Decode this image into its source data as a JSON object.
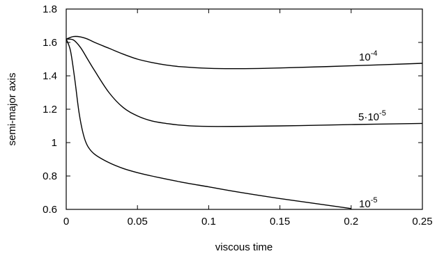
{
  "chart_data": {
    "type": "line",
    "xlabel": "viscous time",
    "ylabel": "semi-major axis",
    "xlim": [
      0,
      0.25
    ],
    "ylim": [
      0.6,
      1.8
    ],
    "xticks": [
      "0",
      "0.05",
      "0.1",
      "0.15",
      "0.2",
      "0.25"
    ],
    "yticks": [
      "0.6",
      "0.8",
      "1",
      "1.2",
      "1.4",
      "1.6",
      "1.8"
    ],
    "grid": false,
    "series": [
      {
        "label_base": "10",
        "label_exp": "-4",
        "x": [
          0,
          0.005,
          0.01,
          0.015,
          0.02,
          0.03,
          0.04,
          0.05,
          0.06,
          0.07,
          0.08,
          0.1,
          0.12,
          0.15,
          0.2,
          0.25
        ],
        "y": [
          1.62,
          1.635,
          1.633,
          1.62,
          1.6,
          1.565,
          1.53,
          1.5,
          1.48,
          1.465,
          1.455,
          1.445,
          1.443,
          1.447,
          1.46,
          1.475
        ]
      },
      {
        "label_base": "5·10",
        "label_exp": "-5",
        "x": [
          0,
          0.005,
          0.01,
          0.015,
          0.02,
          0.03,
          0.04,
          0.05,
          0.06,
          0.07,
          0.08,
          0.1,
          0.15,
          0.2,
          0.25
        ],
        "y": [
          1.62,
          1.615,
          1.57,
          1.5,
          1.43,
          1.3,
          1.21,
          1.16,
          1.13,
          1.115,
          1.105,
          1.097,
          1.1,
          1.108,
          1.115
        ]
      },
      {
        "label_base": "10",
        "label_exp": "-5",
        "x": [
          0,
          0.003,
          0.006,
          0.009,
          0.012,
          0.015,
          0.02,
          0.03,
          0.04,
          0.05,
          0.06,
          0.08,
          0.1,
          0.12,
          0.15,
          0.2
        ],
        "y": [
          1.62,
          1.55,
          1.38,
          1.18,
          1.05,
          0.98,
          0.93,
          0.88,
          0.845,
          0.82,
          0.8,
          0.765,
          0.735,
          0.705,
          0.665,
          0.605
        ]
      }
    ]
  }
}
